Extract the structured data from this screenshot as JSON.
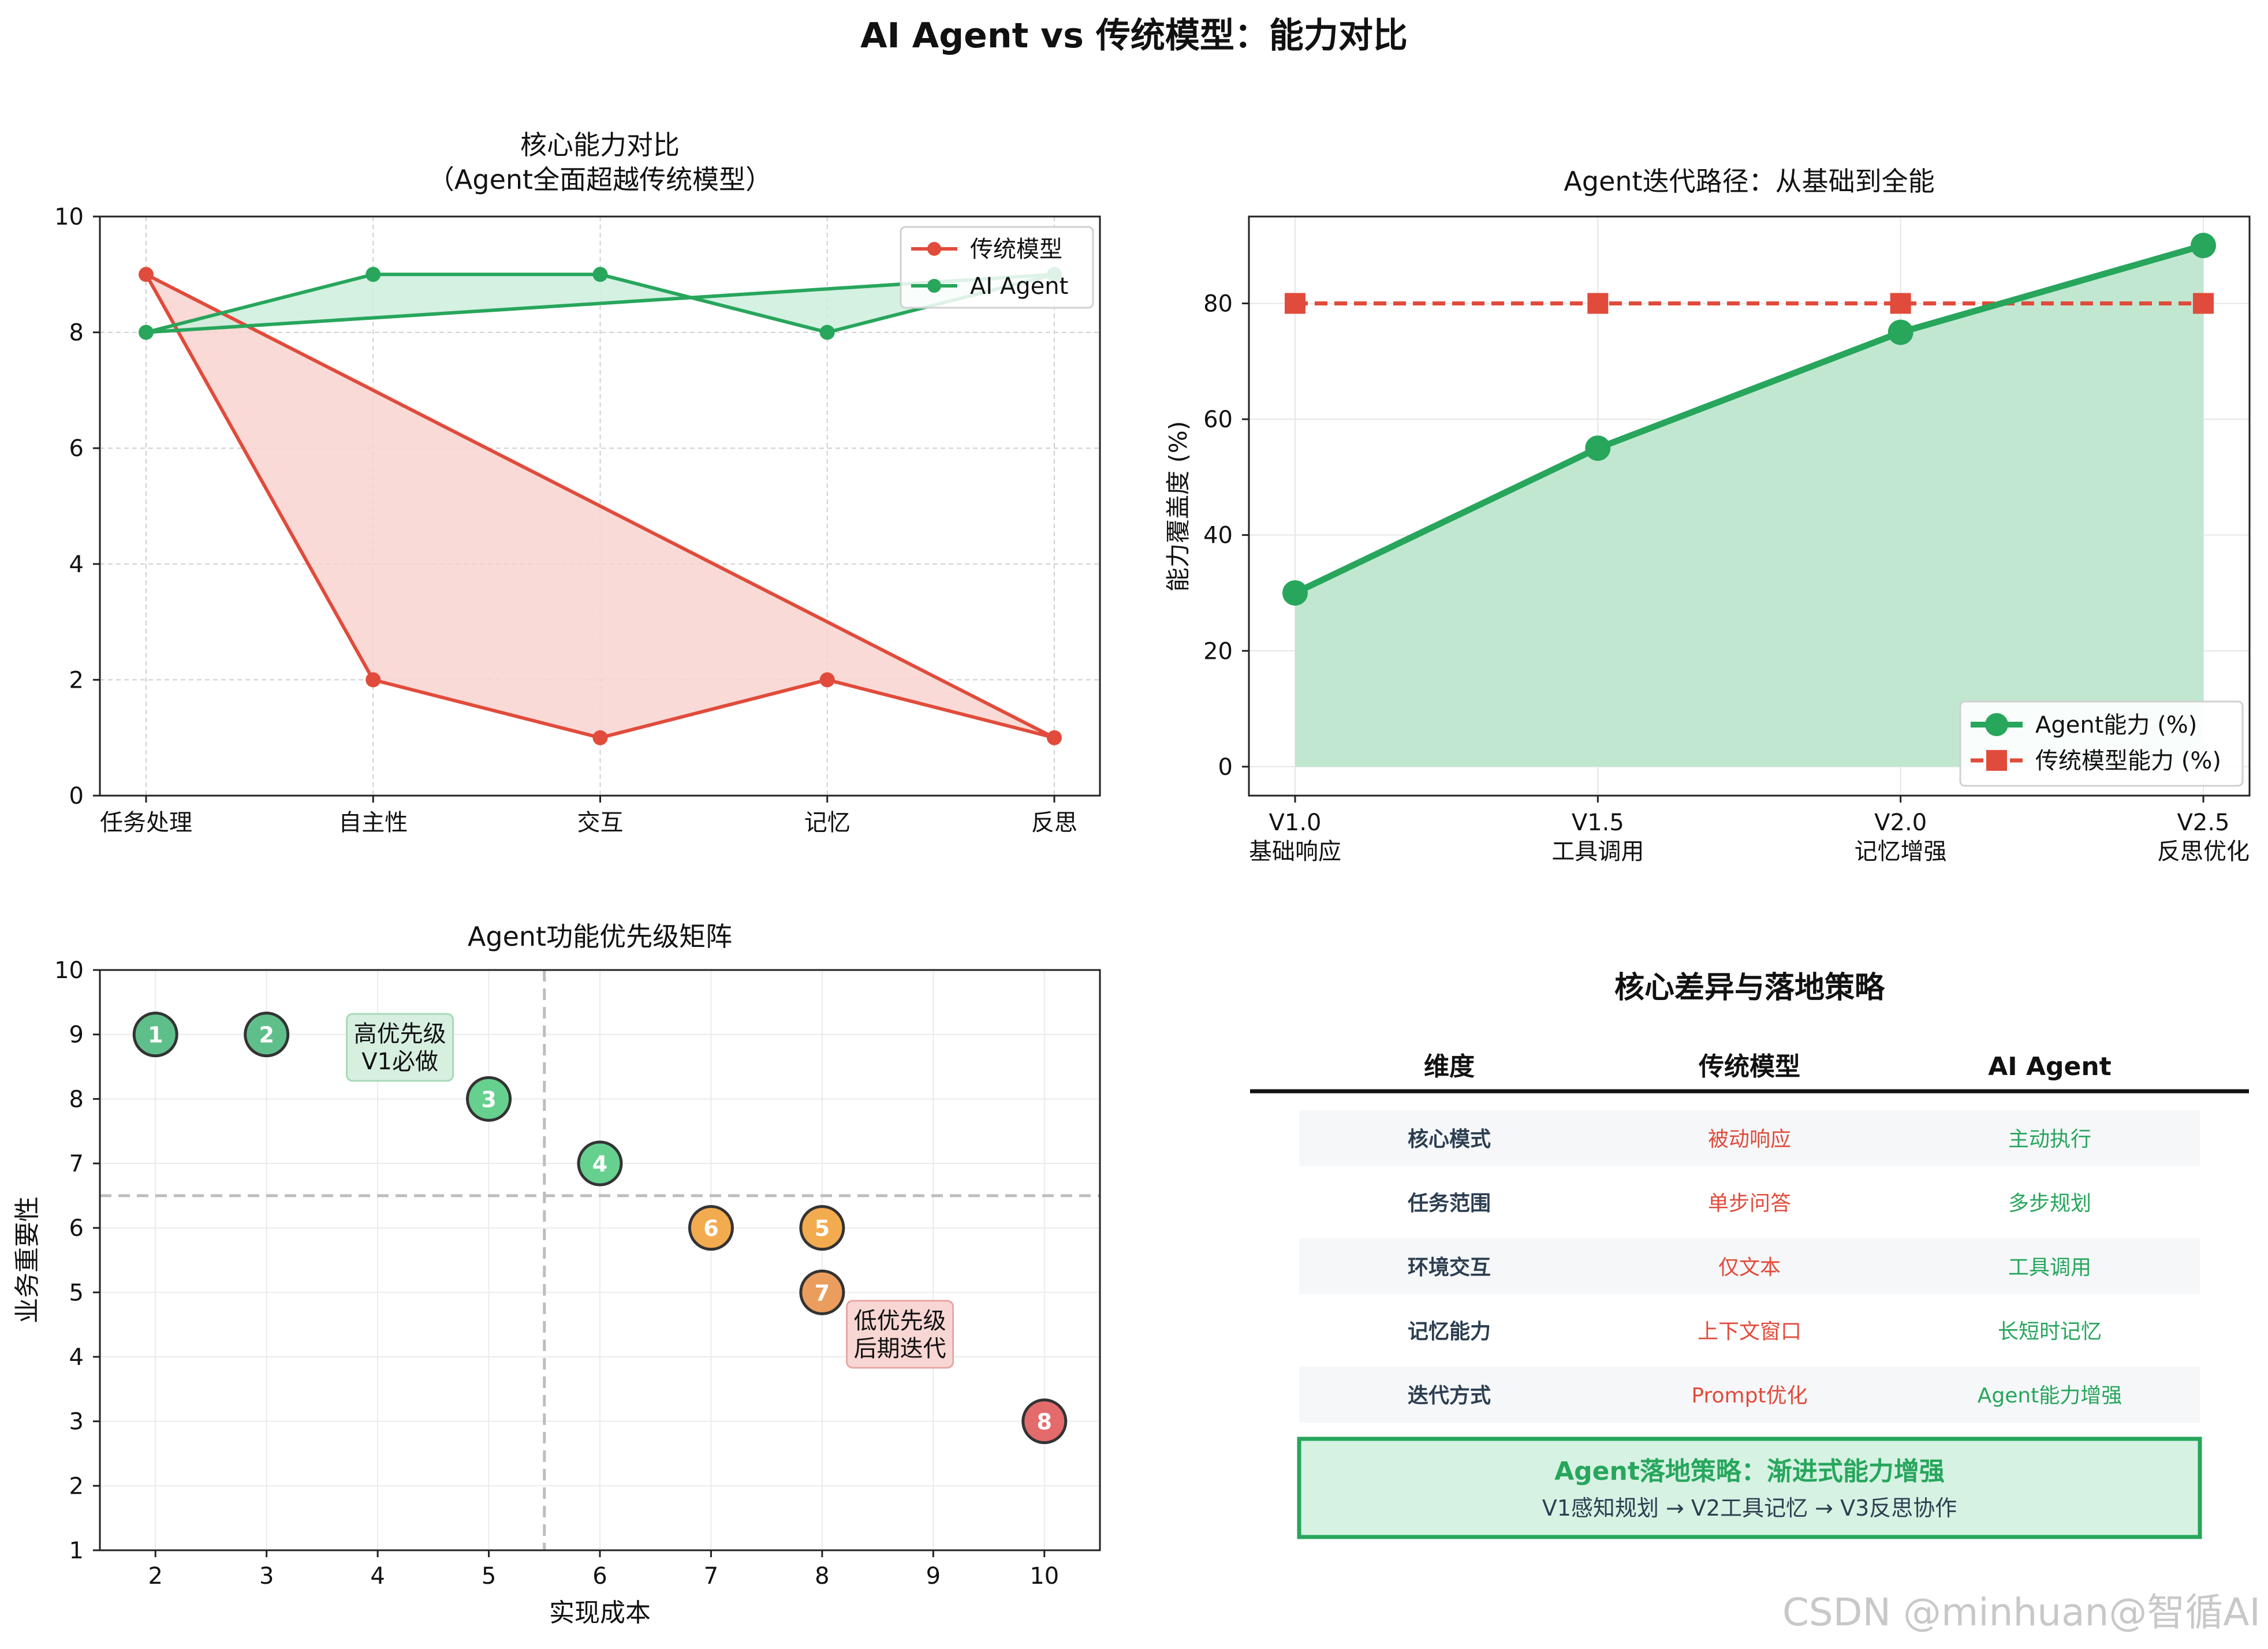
{
  "page_title": "AI Agent vs 传统模型：能力对比",
  "watermark": "CSDN @minhuan@智循AI",
  "chart_data": [
    {
      "type": "line",
      "title": "核心能力对比\n（Agent全面超越传统模型）",
      "categories": [
        "任务处理",
        "自主性",
        "交互",
        "记忆",
        "反思"
      ],
      "ylim": [
        0,
        10
      ],
      "yticks": [
        0,
        2,
        4,
        6,
        8,
        10
      ],
      "grid": true,
      "legend_position": "top-right",
      "closed_fill": true,
      "series": [
        {
          "name": "传统模型",
          "values": [
            9,
            2,
            1,
            2,
            1
          ],
          "color": "#e14b3b",
          "fill": "#f8d3cf"
        },
        {
          "name": "AI Agent",
          "values": [
            8,
            9,
            9,
            8,
            9
          ],
          "color": "#27a65c",
          "fill": "#cdeedd"
        }
      ]
    },
    {
      "type": "line",
      "title": "Agent迭代路径：从基础到全能",
      "ylabel": "能力覆盖度 (%)",
      "categories": [
        "V1.0\n基础响应",
        "V1.5\n工具调用",
        "V2.0\n记忆增强",
        "V2.5\n反思优化"
      ],
      "ylim": [
        -5,
        95
      ],
      "yticks": [
        0,
        20,
        40,
        60,
        80
      ],
      "grid": true,
      "legend_position": "bottom-right",
      "series": [
        {
          "name": "Agent能力 (%)",
          "values": [
            30,
            55,
            75,
            90
          ],
          "color": "#27a65c",
          "fill": "#bfe6cf",
          "marker": "circle"
        },
        {
          "name": "传统模型能力 (%)",
          "values": [
            80,
            80,
            80,
            80
          ],
          "color": "#e14b3b",
          "marker": "square",
          "dashed": true
        }
      ]
    },
    {
      "type": "scatter",
      "title": "Agent功能优先级矩阵",
      "xlabel": "实现成本",
      "ylabel": "业务重要性",
      "xlim": [
        1.5,
        10.5
      ],
      "ylim": [
        1,
        10
      ],
      "xticks": [
        2,
        3,
        4,
        5,
        6,
        7,
        8,
        9,
        10
      ],
      "yticks": [
        1,
        2,
        3,
        4,
        5,
        6,
        7,
        8,
        9,
        10
      ],
      "grid": true,
      "divider_x": 5.5,
      "divider_y": 6.5,
      "points": [
        {
          "label": "1",
          "x": 2,
          "y": 9,
          "color": "#5fbf8a"
        },
        {
          "label": "2",
          "x": 3,
          "y": 9,
          "color": "#5fbf8a"
        },
        {
          "label": "3",
          "x": 5,
          "y": 8,
          "color": "#66d08f"
        },
        {
          "label": "4",
          "x": 6,
          "y": 7,
          "color": "#66d08f"
        },
        {
          "label": "6",
          "x": 7,
          "y": 6,
          "color": "#f3ab4f"
        },
        {
          "label": "5",
          "x": 8,
          "y": 6,
          "color": "#f3ab4f"
        },
        {
          "label": "7",
          "x": 8,
          "y": 5,
          "color": "#eb9d5e"
        },
        {
          "label": "8",
          "x": 10,
          "y": 3,
          "color": "#e46b6b"
        }
      ],
      "annotations": [
        {
          "text": "高优先级\nV1必做",
          "x": 4.2,
          "y": 8.8,
          "bg": "#d6efdf",
          "border": "#a8d8b8"
        },
        {
          "text": "低优先级\n后期迭代",
          "x": 8.7,
          "y": 4.35,
          "bg": "#f8d6d3",
          "border": "#e7a8a2"
        }
      ]
    },
    {
      "type": "table",
      "title": "核心差异与落地策略",
      "columns": [
        "维度",
        "传统模型",
        "AI Agent"
      ],
      "rows": [
        [
          "核心模式",
          "被动响应",
          "主动执行"
        ],
        [
          "任务范围",
          "单步问答",
          "多步规划"
        ],
        [
          "环境交互",
          "仅文本",
          "工具调用"
        ],
        [
          "记忆能力",
          "上下文窗口",
          "长短时记忆"
        ],
        [
          "迭代方式",
          "Prompt优化",
          "Agent能力增强"
        ]
      ],
      "column_colors": [
        "#2c3e50",
        "#e14b3b",
        "#27a65c"
      ],
      "strategy_title": "Agent落地策略：渐进式能力增强",
      "strategy_text": "V1感知规划 → V2工具记忆 → V3反思协作"
    }
  ]
}
